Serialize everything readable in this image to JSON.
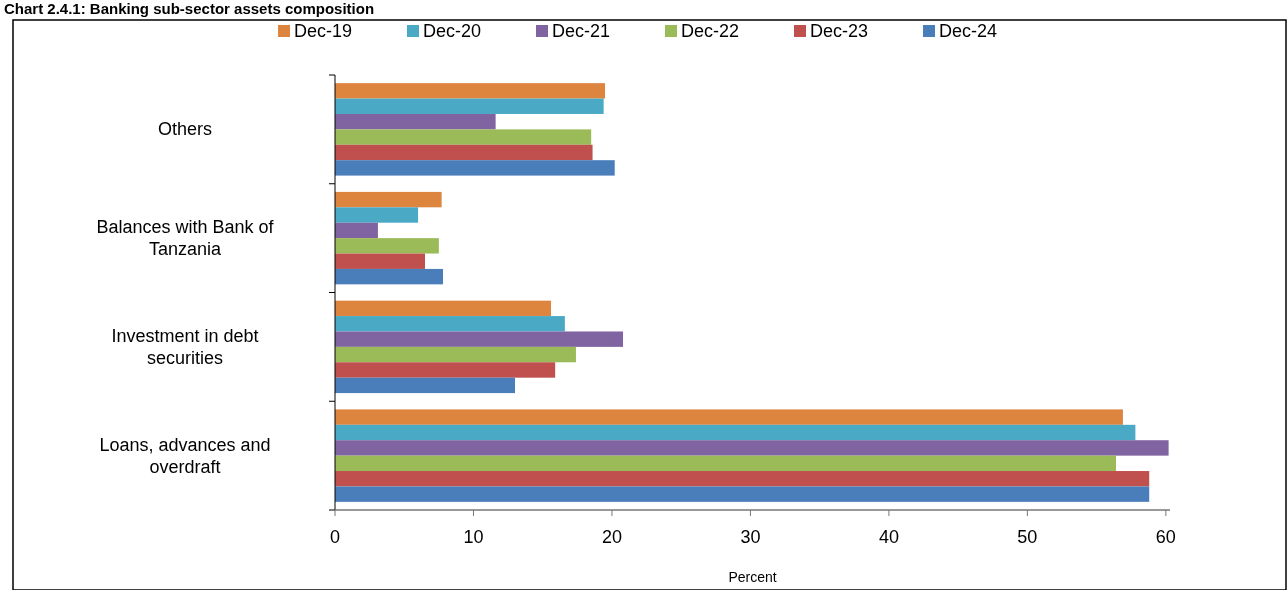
{
  "chart_data": {
    "type": "bar",
    "orientation": "horizontal",
    "title": "Chart 2.4.1: Banking sub-sector assets composition",
    "xlabel": "Percent",
    "categories": [
      "Others",
      "Balances with Bank of Tanzania",
      "Investment in debt securities",
      "Loans, advances and overdraft"
    ],
    "series": [
      {
        "name": "Dec-19",
        "color": "#dd843f",
        "values": [
          19.5,
          7.7,
          15.6,
          56.9
        ]
      },
      {
        "name": "Dec-20",
        "color": "#4aaac5",
        "values": [
          19.4,
          6.0,
          16.6,
          57.8
        ]
      },
      {
        "name": "Dec-21",
        "color": "#8064a2",
        "values": [
          11.6,
          3.1,
          20.8,
          60.2
        ]
      },
      {
        "name": "Dec-22",
        "color": "#9bbb59",
        "values": [
          18.5,
          7.5,
          17.4,
          56.4
        ]
      },
      {
        "name": "Dec-23",
        "color": "#c0504d",
        "values": [
          18.6,
          6.5,
          15.9,
          58.8
        ]
      },
      {
        "name": "Dec-24",
        "color": "#4a7ebb",
        "values": [
          20.2,
          7.8,
          13.0,
          58.8
        ]
      }
    ],
    "xlim": [
      0,
      60.3
    ],
    "xticks": [
      0,
      10,
      20,
      30,
      40,
      50,
      60
    ],
    "grid": false,
    "legend": "top"
  }
}
